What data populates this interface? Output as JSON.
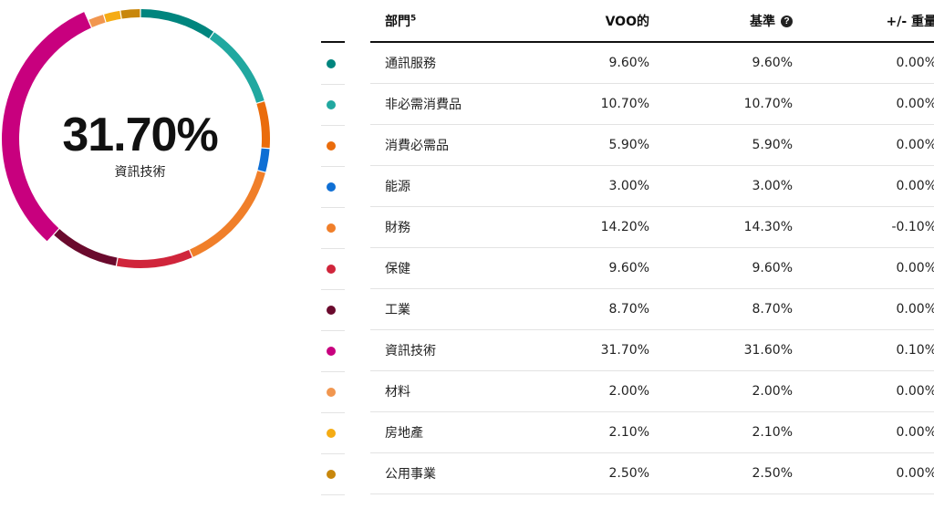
{
  "chart_data": {
    "type": "pie",
    "center_value": "31.70%",
    "center_label": "資訊技術",
    "slices": [
      {
        "label": "通訊服務",
        "value": 9.6,
        "color": "#00857e"
      },
      {
        "label": "非必需消費品",
        "value": 10.7,
        "color": "#21a8a0"
      },
      {
        "label": "消費必需品",
        "value": 5.9,
        "color": "#ea6c0c"
      },
      {
        "label": "能源",
        "value": 3.0,
        "color": "#0f6fd4"
      },
      {
        "label": "財務",
        "value": 14.2,
        "color": "#f07f2a"
      },
      {
        "label": "保健",
        "value": 9.6,
        "color": "#d0253b"
      },
      {
        "label": "工業",
        "value": 8.7,
        "color": "#6a0a2d"
      },
      {
        "label": "資訊技術",
        "value": 31.7,
        "color": "#c8007e"
      },
      {
        "label": "材料",
        "value": 2.0,
        "color": "#f1964f"
      },
      {
        "label": "房地產",
        "value": 2.1,
        "color": "#f5ac14"
      },
      {
        "label": "公用事業",
        "value": 2.5,
        "color": "#c8870c"
      }
    ],
    "highlighted": "資訊技術"
  },
  "table": {
    "headers": {
      "sector": "部門",
      "sector_sup": "5",
      "fund": "VOO的",
      "benchmark": "基準",
      "help_icon": "?",
      "diff": "+/- 重量"
    },
    "rows": [
      {
        "name": "通訊服務",
        "fund": "9.60%",
        "benchmark": "9.60%",
        "diff": "0.00%",
        "color": "#00857e"
      },
      {
        "name": "非必需消費品",
        "fund": "10.70%",
        "benchmark": "10.70%",
        "diff": "0.00%",
        "color": "#21a8a0"
      },
      {
        "name": "消費必需品",
        "fund": "5.90%",
        "benchmark": "5.90%",
        "diff": "0.00%",
        "color": "#ea6c0c"
      },
      {
        "name": "能源",
        "fund": "3.00%",
        "benchmark": "3.00%",
        "diff": "0.00%",
        "color": "#0f6fd4"
      },
      {
        "name": "財務",
        "fund": "14.20%",
        "benchmark": "14.30%",
        "diff": "-0.10%",
        "color": "#f07f2a"
      },
      {
        "name": "保健",
        "fund": "9.60%",
        "benchmark": "9.60%",
        "diff": "0.00%",
        "color": "#d0253b"
      },
      {
        "name": "工業",
        "fund": "8.70%",
        "benchmark": "8.70%",
        "diff": "0.00%",
        "color": "#6a0a2d"
      },
      {
        "name": "資訊技術",
        "fund": "31.70%",
        "benchmark": "31.60%",
        "diff": "0.10%",
        "color": "#c8007e"
      },
      {
        "name": "材料",
        "fund": "2.00%",
        "benchmark": "2.00%",
        "diff": "0.00%",
        "color": "#f1964f"
      },
      {
        "name": "房地產",
        "fund": "2.10%",
        "benchmark": "2.10%",
        "diff": "0.00%",
        "color": "#f5ac14"
      },
      {
        "name": "公用事業",
        "fund": "2.50%",
        "benchmark": "2.50%",
        "diff": "0.00%",
        "color": "#c8870c"
      }
    ]
  }
}
